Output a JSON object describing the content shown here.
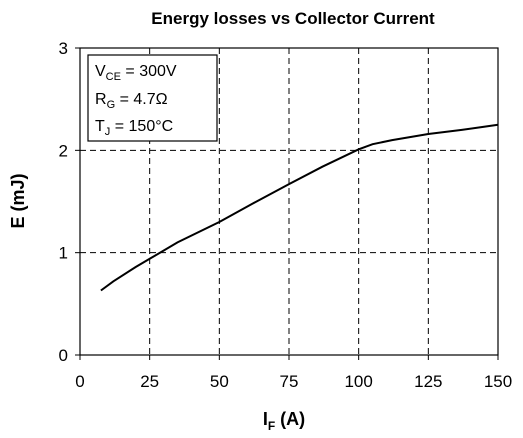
{
  "chart_data": {
    "type": "line",
    "title": "Energy losses vs Collector Current",
    "xlabel": {
      "main": "I",
      "sub": "F",
      "unit": " (A)"
    },
    "ylabel": "E (mJ)",
    "xlim": [
      0,
      150
    ],
    "ylim": [
      0,
      3
    ],
    "xticks": [
      "0",
      "25",
      "50",
      "75",
      "100",
      "125",
      "150"
    ],
    "yticks": [
      "0",
      "1",
      "2",
      "3"
    ],
    "grid": true,
    "series": [
      {
        "x": [
          7.5,
          12,
          20,
          25,
          35,
          50,
          62,
          75,
          87,
          100,
          105,
          112,
          125,
          137,
          150
        ],
        "y": [
          0.63,
          0.72,
          0.86,
          0.94,
          1.1,
          1.3,
          1.48,
          1.67,
          1.84,
          2.01,
          2.06,
          2.1,
          2.16,
          2.2,
          2.25
        ]
      }
    ],
    "annotation": {
      "lines": [
        {
          "main": "V",
          "sub": "CE",
          "rest": " = 300V"
        },
        {
          "main": "R",
          "sub": "G",
          "rest": " = 4.7Ω"
        },
        {
          "main": "T",
          "sub": "J",
          "rest": " = 150°C"
        }
      ]
    },
    "line_color": "#000000"
  }
}
